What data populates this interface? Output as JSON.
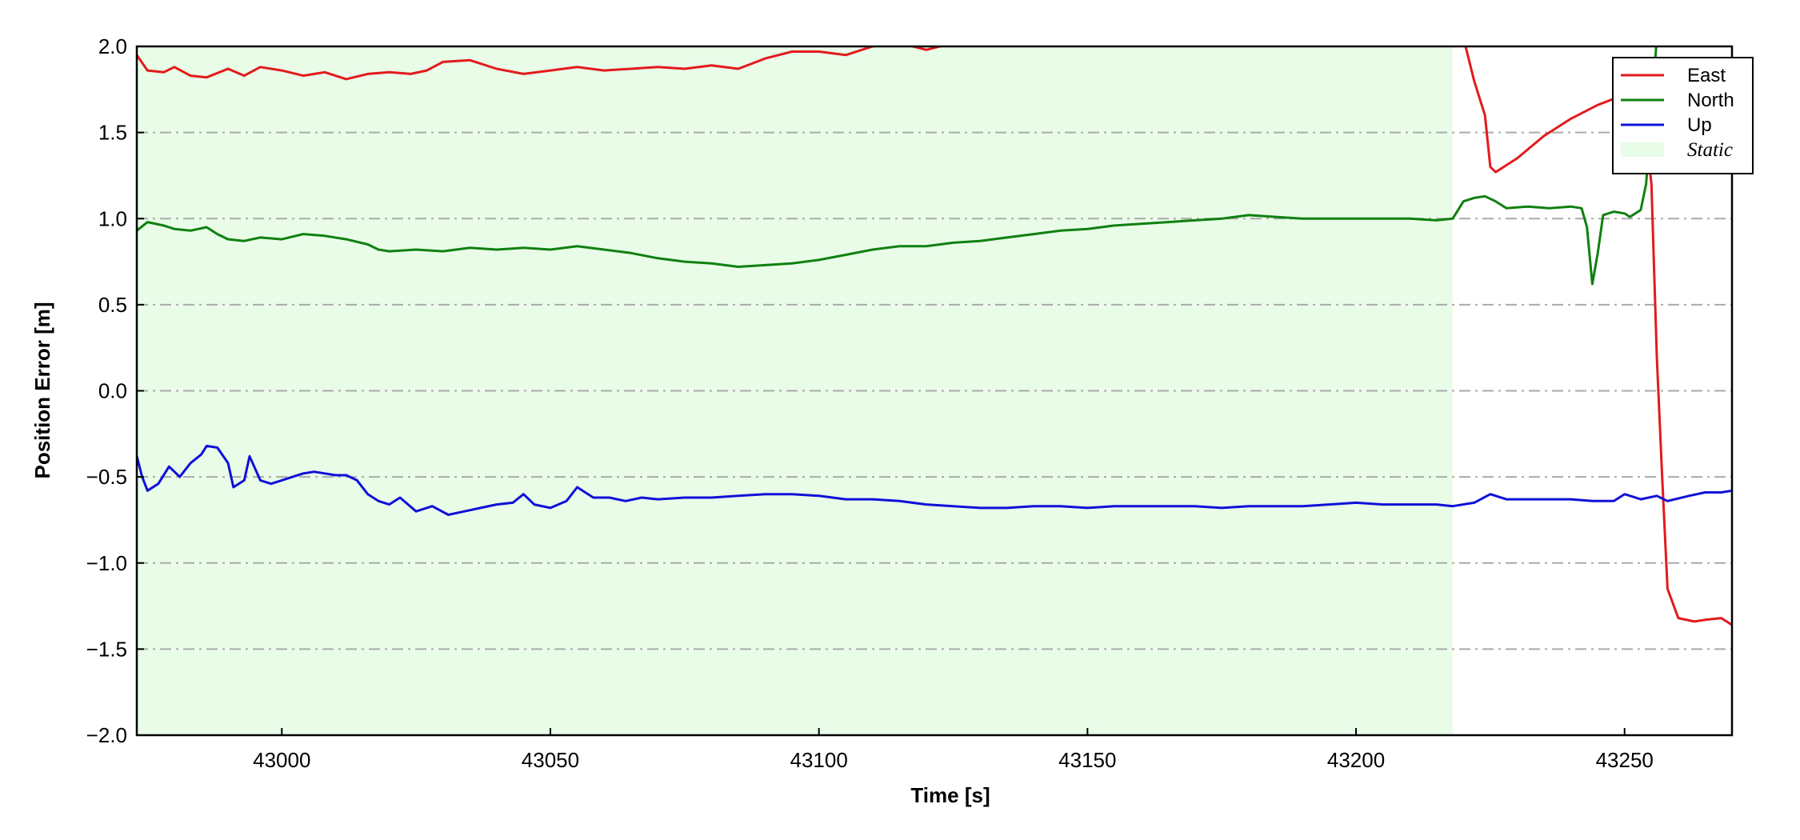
{
  "chart_data": {
    "type": "line",
    "xlabel": "Time [s]",
    "ylabel": "Position Error [m]",
    "xlim": [
      42973,
      43270
    ],
    "ylim": [
      -2.0,
      2.0
    ],
    "x_ticks": [
      43000,
      43050,
      43100,
      43150,
      43200,
      43250
    ],
    "x_tick_labels": [
      "43000",
      "43050",
      "43100",
      "43150",
      "43200",
      "43250"
    ],
    "y_ticks": [
      -2.0,
      -1.5,
      -1.0,
      -0.5,
      0.0,
      0.5,
      1.0,
      1.5,
      2.0
    ],
    "y_tick_labels": [
      "−2.0",
      "−1.5",
      "−1.0",
      "−0.5",
      "0.0",
      "0.5",
      "1.0",
      "1.5",
      "2.0"
    ],
    "grid": {
      "axis": "y",
      "style": "dash-dot",
      "color": "#aaaaaa"
    },
    "legend_position": "top-right",
    "shaded_region": {
      "name": "Static",
      "x_start": 42973,
      "x_end": 43218,
      "color": "#e8fce8"
    },
    "series": [
      {
        "name": "East",
        "color": "#e31a1c",
        "points": [
          [
            42973,
            1.95
          ],
          [
            42975,
            1.86
          ],
          [
            42978,
            1.85
          ],
          [
            42980,
            1.88
          ],
          [
            42983,
            1.83
          ],
          [
            42986,
            1.82
          ],
          [
            42990,
            1.87
          ],
          [
            42993,
            1.83
          ],
          [
            42996,
            1.88
          ],
          [
            43000,
            1.86
          ],
          [
            43004,
            1.83
          ],
          [
            43008,
            1.85
          ],
          [
            43012,
            1.81
          ],
          [
            43016,
            1.84
          ],
          [
            43020,
            1.85
          ],
          [
            43024,
            1.84
          ],
          [
            43027,
            1.86
          ],
          [
            43030,
            1.91
          ],
          [
            43035,
            1.92
          ],
          [
            43040,
            1.87
          ],
          [
            43045,
            1.84
          ],
          [
            43050,
            1.86
          ],
          [
            43055,
            1.88
          ],
          [
            43060,
            1.86
          ],
          [
            43065,
            1.87
          ],
          [
            43070,
            1.88
          ],
          [
            43075,
            1.87
          ],
          [
            43080,
            1.89
          ],
          [
            43085,
            1.87
          ],
          [
            43090,
            1.93
          ],
          [
            43095,
            1.97
          ],
          [
            43100,
            1.97
          ],
          [
            43105,
            1.95
          ],
          [
            43110,
            2.0
          ],
          [
            43115,
            2.02
          ],
          [
            43120,
            1.98
          ],
          [
            43125,
            2.02
          ],
          [
            43130,
            2.05
          ],
          [
            43140,
            2.1
          ],
          [
            43160,
            2.15
          ],
          [
            43180,
            2.2
          ],
          [
            43200,
            2.25
          ],
          [
            43218,
            2.3
          ],
          [
            43220,
            2.05
          ],
          [
            43222,
            1.8
          ],
          [
            43224,
            1.6
          ],
          [
            43225,
            1.3
          ],
          [
            43226,
            1.27
          ],
          [
            43230,
            1.35
          ],
          [
            43235,
            1.48
          ],
          [
            43240,
            1.58
          ],
          [
            43245,
            1.66
          ],
          [
            43250,
            1.72
          ],
          [
            43253,
            1.78
          ],
          [
            43255,
            1.2
          ],
          [
            43256,
            0.2
          ],
          [
            43257,
            -0.5
          ],
          [
            43258,
            -1.15
          ],
          [
            43260,
            -1.32
          ],
          [
            43263,
            -1.34
          ],
          [
            43265,
            -1.33
          ],
          [
            43268,
            -1.32
          ],
          [
            43270,
            -1.36
          ]
        ]
      },
      {
        "name": "North",
        "color": "#108010",
        "points": [
          [
            42973,
            0.93
          ],
          [
            42975,
            0.98
          ],
          [
            42978,
            0.96
          ],
          [
            42980,
            0.94
          ],
          [
            42983,
            0.93
          ],
          [
            42986,
            0.95
          ],
          [
            42988,
            0.91
          ],
          [
            42990,
            0.88
          ],
          [
            42993,
            0.87
          ],
          [
            42996,
            0.89
          ],
          [
            43000,
            0.88
          ],
          [
            43004,
            0.91
          ],
          [
            43008,
            0.9
          ],
          [
            43012,
            0.88
          ],
          [
            43016,
            0.85
          ],
          [
            43018,
            0.82
          ],
          [
            43020,
            0.81
          ],
          [
            43025,
            0.82
          ],
          [
            43030,
            0.81
          ],
          [
            43035,
            0.83
          ],
          [
            43040,
            0.82
          ],
          [
            43045,
            0.83
          ],
          [
            43050,
            0.82
          ],
          [
            43055,
            0.84
          ],
          [
            43060,
            0.82
          ],
          [
            43065,
            0.8
          ],
          [
            43070,
            0.77
          ],
          [
            43075,
            0.75
          ],
          [
            43080,
            0.74
          ],
          [
            43085,
            0.72
          ],
          [
            43090,
            0.73
          ],
          [
            43095,
            0.74
          ],
          [
            43100,
            0.76
          ],
          [
            43105,
            0.79
          ],
          [
            43110,
            0.82
          ],
          [
            43115,
            0.84
          ],
          [
            43120,
            0.84
          ],
          [
            43125,
            0.86
          ],
          [
            43130,
            0.87
          ],
          [
            43135,
            0.89
          ],
          [
            43140,
            0.91
          ],
          [
            43145,
            0.93
          ],
          [
            43150,
            0.94
          ],
          [
            43155,
            0.96
          ],
          [
            43160,
            0.97
          ],
          [
            43165,
            0.98
          ],
          [
            43170,
            0.99
          ],
          [
            43175,
            1.0
          ],
          [
            43180,
            1.02
          ],
          [
            43185,
            1.01
          ],
          [
            43190,
            1.0
          ],
          [
            43195,
            1.0
          ],
          [
            43200,
            1.0
          ],
          [
            43205,
            1.0
          ],
          [
            43210,
            1.0
          ],
          [
            43215,
            0.99
          ],
          [
            43218,
            1.0
          ],
          [
            43220,
            1.1
          ],
          [
            43222,
            1.12
          ],
          [
            43224,
            1.13
          ],
          [
            43226,
            1.1
          ],
          [
            43228,
            1.06
          ],
          [
            43232,
            1.07
          ],
          [
            43236,
            1.06
          ],
          [
            43240,
            1.07
          ],
          [
            43242,
            1.06
          ],
          [
            43243,
            0.95
          ],
          [
            43244,
            0.62
          ],
          [
            43245,
            0.8
          ],
          [
            43246,
            1.02
          ],
          [
            43248,
            1.04
          ],
          [
            43250,
            1.03
          ],
          [
            43251,
            1.01
          ],
          [
            43253,
            1.05
          ],
          [
            43254,
            1.2
          ],
          [
            43255,
            1.6
          ],
          [
            43256,
            2.05
          ]
        ]
      },
      {
        "name": "Up",
        "color": "#1010d8",
        "points": [
          [
            42973,
            -0.38
          ],
          [
            42974,
            -0.5
          ],
          [
            42975,
            -0.58
          ],
          [
            42977,
            -0.54
          ],
          [
            42979,
            -0.44
          ],
          [
            42981,
            -0.5
          ],
          [
            42983,
            -0.42
          ],
          [
            42985,
            -0.37
          ],
          [
            42986,
            -0.32
          ],
          [
            42988,
            -0.33
          ],
          [
            42990,
            -0.42
          ],
          [
            42991,
            -0.56
          ],
          [
            42993,
            -0.52
          ],
          [
            42994,
            -0.38
          ],
          [
            42996,
            -0.52
          ],
          [
            42998,
            -0.54
          ],
          [
            43000,
            -0.52
          ],
          [
            43002,
            -0.5
          ],
          [
            43004,
            -0.48
          ],
          [
            43006,
            -0.47
          ],
          [
            43008,
            -0.48
          ],
          [
            43010,
            -0.49
          ],
          [
            43012,
            -0.49
          ],
          [
            43014,
            -0.52
          ],
          [
            43016,
            -0.6
          ],
          [
            43018,
            -0.64
          ],
          [
            43020,
            -0.66
          ],
          [
            43022,
            -0.62
          ],
          [
            43025,
            -0.7
          ],
          [
            43028,
            -0.67
          ],
          [
            43031,
            -0.72
          ],
          [
            43034,
            -0.7
          ],
          [
            43037,
            -0.68
          ],
          [
            43040,
            -0.66
          ],
          [
            43043,
            -0.65
          ],
          [
            43045,
            -0.6
          ],
          [
            43047,
            -0.66
          ],
          [
            43050,
            -0.68
          ],
          [
            43053,
            -0.64
          ],
          [
            43055,
            -0.56
          ],
          [
            43058,
            -0.62
          ],
          [
            43061,
            -0.62
          ],
          [
            43064,
            -0.64
          ],
          [
            43067,
            -0.62
          ],
          [
            43070,
            -0.63
          ],
          [
            43075,
            -0.62
          ],
          [
            43080,
            -0.62
          ],
          [
            43085,
            -0.61
          ],
          [
            43090,
            -0.6
          ],
          [
            43095,
            -0.6
          ],
          [
            43100,
            -0.61
          ],
          [
            43105,
            -0.63
          ],
          [
            43110,
            -0.63
          ],
          [
            43115,
            -0.64
          ],
          [
            43120,
            -0.66
          ],
          [
            43125,
            -0.67
          ],
          [
            43130,
            -0.68
          ],
          [
            43135,
            -0.68
          ],
          [
            43140,
            -0.67
          ],
          [
            43145,
            -0.67
          ],
          [
            43150,
            -0.68
          ],
          [
            43155,
            -0.67
          ],
          [
            43160,
            -0.67
          ],
          [
            43165,
            -0.67
          ],
          [
            43170,
            -0.67
          ],
          [
            43175,
            -0.68
          ],
          [
            43180,
            -0.67
          ],
          [
            43185,
            -0.67
          ],
          [
            43190,
            -0.67
          ],
          [
            43195,
            -0.66
          ],
          [
            43200,
            -0.65
          ],
          [
            43205,
            -0.66
          ],
          [
            43210,
            -0.66
          ],
          [
            43215,
            -0.66
          ],
          [
            43218,
            -0.67
          ],
          [
            43222,
            -0.65
          ],
          [
            43225,
            -0.6
          ],
          [
            43228,
            -0.63
          ],
          [
            43232,
            -0.63
          ],
          [
            43236,
            -0.63
          ],
          [
            43240,
            -0.63
          ],
          [
            43244,
            -0.64
          ],
          [
            43248,
            -0.64
          ],
          [
            43250,
            -0.6
          ],
          [
            43253,
            -0.63
          ],
          [
            43256,
            -0.61
          ],
          [
            43258,
            -0.64
          ],
          [
            43262,
            -0.61
          ],
          [
            43265,
            -0.59
          ],
          [
            43268,
            -0.59
          ],
          [
            43270,
            -0.58
          ]
        ]
      }
    ]
  }
}
